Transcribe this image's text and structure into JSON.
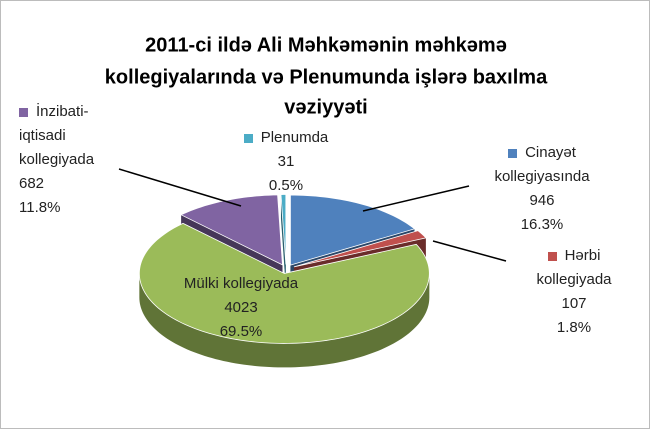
{
  "chart_data": {
    "type": "pie3d",
    "title": [
      "2011-ci ildə Ali Məhkəmənin məhkəmə",
      "kollegiyalarında və Plenumunda  işlərə baxılma",
      "vəziyyəti"
    ],
    "categories": [
      "Cinayət kollegiyasında",
      "Hərbi kollegiyada",
      "Mülki kollegiyada",
      "İnzibati-iqtisadi kollegiyada",
      "Plenumda"
    ],
    "values": [
      946,
      107,
      4023,
      682,
      31
    ],
    "percents": [
      16.3,
      1.8,
      69.5,
      11.8,
      0.5
    ],
    "percent_labels": [
      "16.3%",
      "1.8%",
      "69.5%",
      "11.8%",
      "0.5%"
    ],
    "colors": [
      "#4f81bd",
      "#c0504d",
      "#9bbb59",
      "#8064a2",
      "#4bacc6"
    ]
  }
}
